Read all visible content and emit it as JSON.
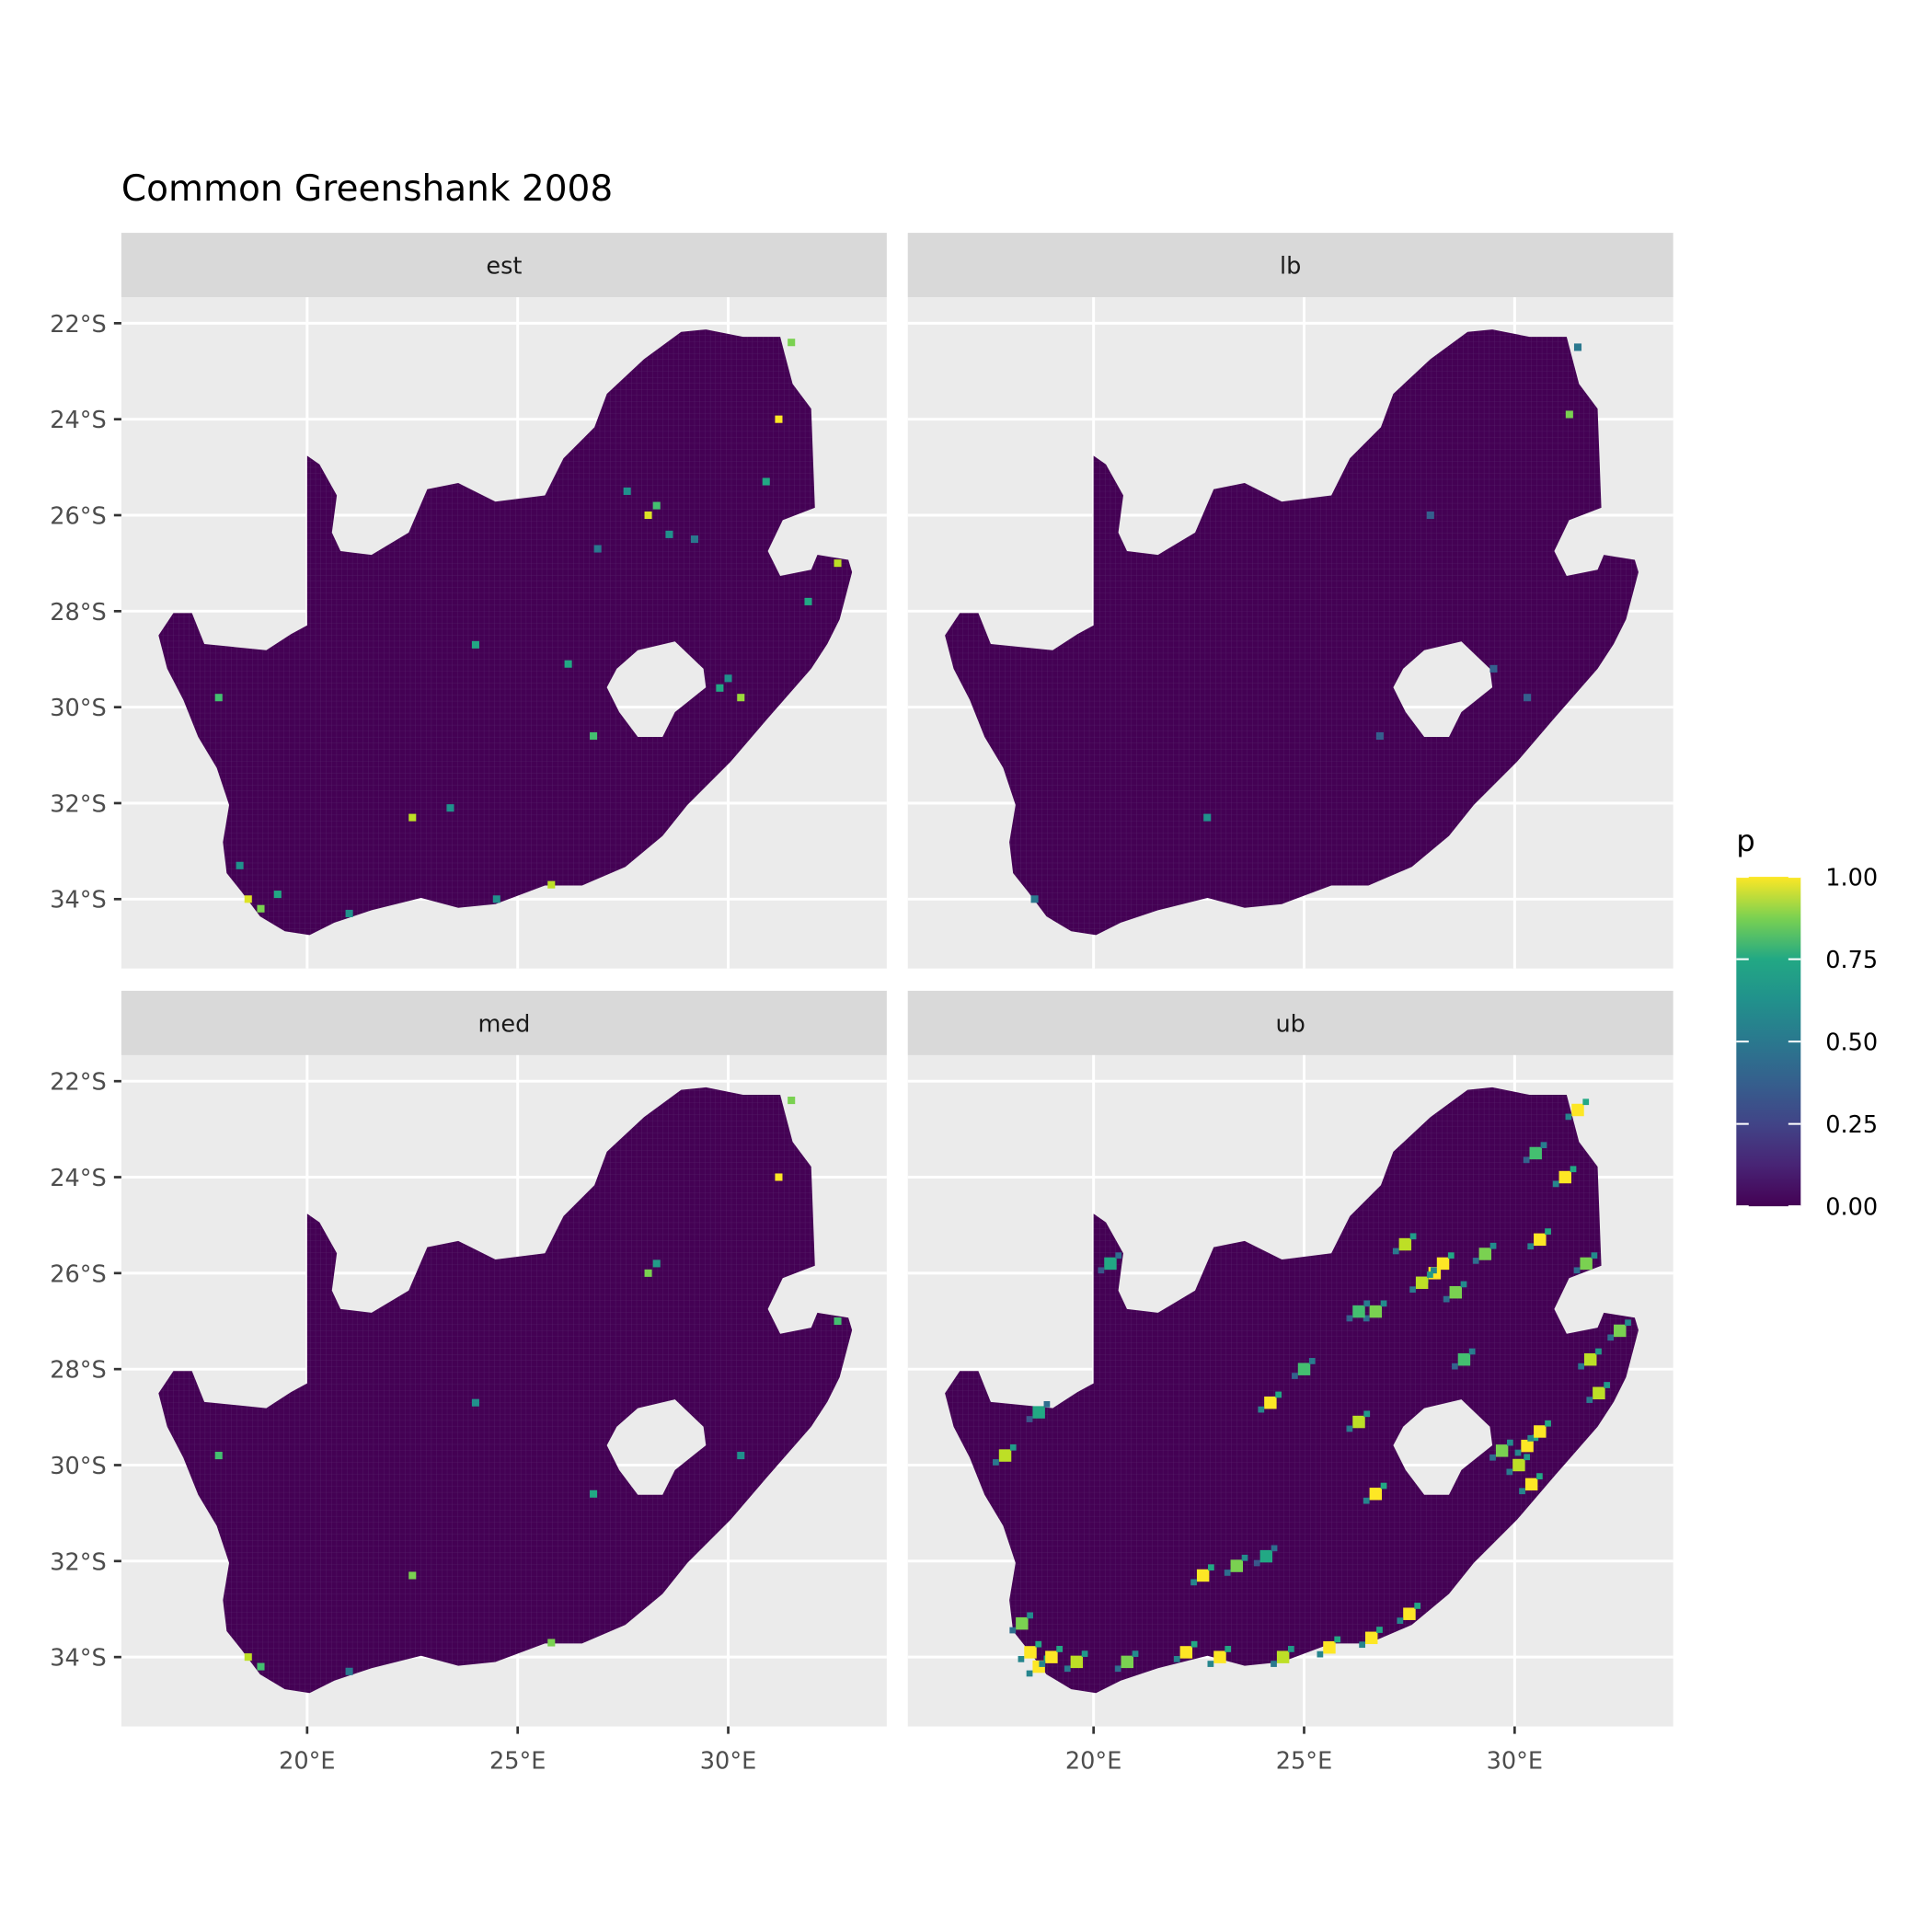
{
  "chart_data": {
    "type": "heatmap",
    "title": "Common Greenshank 2008",
    "facets": [
      "est",
      "lb",
      "med",
      "ub"
    ],
    "x_ticks": [
      "20°E",
      "25°E",
      "30°E"
    ],
    "x_tick_values": [
      20,
      25,
      30
    ],
    "y_ticks": [
      "22°S",
      "24°S",
      "26°S",
      "28°S",
      "30°S",
      "32°S",
      "34°S"
    ],
    "y_tick_values": [
      -22,
      -24,
      -26,
      -28,
      -30,
      -32,
      -34
    ],
    "xlim": [
      15.6,
      33.8
    ],
    "ylim": [
      -35.45,
      -21.45
    ],
    "grid": true,
    "legend": {
      "title": "p",
      "position": "right",
      "colormap": "viridis",
      "range": [
        0,
        1
      ],
      "labels": [
        "1.00",
        "0.75",
        "0.50",
        "0.25",
        "0.00"
      ],
      "values": [
        1.0,
        0.75,
        0.5,
        0.25,
        0.0
      ]
    },
    "colors": {
      "panel_bg": "#EBEBEB",
      "strip_bg": "#D9D9D9",
      "grid": "#FFFFFF",
      "low": "#440154",
      "high": "#FDE725"
    },
    "hotspots_lon_lat_p": {
      "est": [
        [
          28.1,
          -26.0,
          0.95
        ],
        [
          28.3,
          -25.8,
          0.7
        ],
        [
          27.6,
          -25.5,
          0.5
        ],
        [
          28.6,
          -26.4,
          0.5
        ],
        [
          31.2,
          -24.0,
          1.0
        ],
        [
          31.5,
          -22.4,
          0.8
        ],
        [
          30.9,
          -25.3,
          0.6
        ],
        [
          18.6,
          -34.0,
          0.95
        ],
        [
          18.9,
          -34.2,
          0.8
        ],
        [
          19.3,
          -33.9,
          0.6
        ],
        [
          18.4,
          -33.3,
          0.5
        ],
        [
          22.5,
          -32.3,
          0.9
        ],
        [
          30.3,
          -29.8,
          0.85
        ],
        [
          29.8,
          -29.6,
          0.6
        ],
        [
          30.0,
          -29.4,
          0.5
        ],
        [
          26.8,
          -30.6,
          0.7
        ],
        [
          24.0,
          -28.7,
          0.6
        ],
        [
          26.2,
          -29.1,
          0.6
        ],
        [
          25.8,
          -33.7,
          0.9
        ],
        [
          24.5,
          -34.0,
          0.5
        ],
        [
          31.9,
          -27.8,
          0.6
        ],
        [
          21.0,
          -34.3,
          0.5
        ],
        [
          17.9,
          -29.8,
          0.7
        ],
        [
          32.6,
          -27.0,
          0.9
        ],
        [
          26.9,
          -26.7,
          0.4
        ],
        [
          29.2,
          -26.5,
          0.4
        ],
        [
          23.4,
          -32.1,
          0.5
        ]
      ],
      "lb": [
        [
          31.3,
          -23.9,
          0.8
        ],
        [
          28.0,
          -26.0,
          0.3
        ],
        [
          18.6,
          -34.0,
          0.4
        ],
        [
          30.3,
          -29.8,
          0.3
        ],
        [
          31.5,
          -22.5,
          0.4
        ],
        [
          22.7,
          -32.3,
          0.5
        ],
        [
          29.5,
          -29.2,
          0.3
        ],
        [
          26.8,
          -30.6,
          0.3
        ]
      ],
      "med": [
        [
          28.1,
          -26.0,
          0.8
        ],
        [
          28.3,
          -25.8,
          0.55
        ],
        [
          31.2,
          -24.0,
          1.0
        ],
        [
          31.5,
          -22.4,
          0.8
        ],
        [
          18.6,
          -34.0,
          0.9
        ],
        [
          18.9,
          -34.2,
          0.7
        ],
        [
          22.5,
          -32.3,
          0.8
        ],
        [
          30.3,
          -29.8,
          0.5
        ],
        [
          26.8,
          -30.6,
          0.6
        ],
        [
          25.8,
          -33.7,
          0.8
        ],
        [
          24.0,
          -28.7,
          0.5
        ],
        [
          17.9,
          -29.8,
          0.7
        ],
        [
          32.6,
          -27.0,
          0.7
        ],
        [
          21.0,
          -34.3,
          0.4
        ]
      ],
      "ub": [
        [
          28.1,
          -26.0,
          1.0
        ],
        [
          28.3,
          -25.8,
          1.0
        ],
        [
          27.8,
          -26.2,
          0.9
        ],
        [
          28.6,
          -26.4,
          0.8
        ],
        [
          27.4,
          -25.4,
          0.9
        ],
        [
          26.7,
          -26.8,
          0.8
        ],
        [
          26.3,
          -26.8,
          0.7
        ],
        [
          29.3,
          -25.6,
          0.8
        ],
        [
          30.6,
          -25.3,
          1.0
        ],
        [
          31.2,
          -24.0,
          1.0
        ],
        [
          31.5,
          -22.6,
          1.0
        ],
        [
          30.5,
          -23.5,
          0.7
        ],
        [
          31.7,
          -25.8,
          0.8
        ],
        [
          30.3,
          -29.6,
          1.0
        ],
        [
          30.6,
          -29.3,
          1.0
        ],
        [
          30.1,
          -30.0,
          0.9
        ],
        [
          30.4,
          -30.4,
          1.0
        ],
        [
          29.7,
          -29.7,
          0.8
        ],
        [
          31.8,
          -27.8,
          0.9
        ],
        [
          32.5,
          -27.2,
          0.8
        ],
        [
          32.0,
          -28.5,
          0.9
        ],
        [
          18.5,
          -33.9,
          1.0
        ],
        [
          18.7,
          -34.2,
          1.0
        ],
        [
          19.0,
          -34.0,
          1.0
        ],
        [
          18.3,
          -33.3,
          0.8
        ],
        [
          19.6,
          -34.1,
          0.9
        ],
        [
          20.8,
          -34.1,
          0.8
        ],
        [
          22.2,
          -33.9,
          1.0
        ],
        [
          23.0,
          -34.0,
          1.0
        ],
        [
          24.5,
          -34.0,
          0.9
        ],
        [
          25.6,
          -33.8,
          1.0
        ],
        [
          26.6,
          -33.6,
          1.0
        ],
        [
          27.5,
          -33.1,
          1.0
        ],
        [
          22.6,
          -32.3,
          1.0
        ],
        [
          23.4,
          -32.1,
          0.8
        ],
        [
          24.2,
          -28.7,
          1.0
        ],
        [
          26.3,
          -29.1,
          0.9
        ],
        [
          26.7,
          -30.6,
          1.0
        ],
        [
          25.0,
          -28.0,
          0.7
        ],
        [
          17.9,
          -29.8,
          0.9
        ],
        [
          18.7,
          -28.9,
          0.6
        ],
        [
          20.4,
          -25.8,
          0.6
        ],
        [
          24.1,
          -31.9,
          0.6
        ],
        [
          28.8,
          -27.8,
          0.7
        ]
      ]
    }
  }
}
